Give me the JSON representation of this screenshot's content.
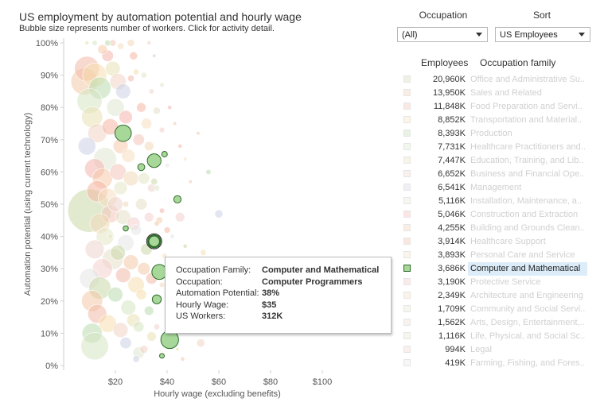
{
  "header": {
    "title": "US employment by automation potential and hourly wage",
    "subtitle": "Bubble size represents number of workers.  Click for activity detail."
  },
  "controls": {
    "occupation_label": "Occupation",
    "occupation_value": "(All)",
    "sort_label": "Sort",
    "sort_value": "US Employees"
  },
  "legend": {
    "employees_header": "Employees",
    "family_header": "Occupation family",
    "rows": [
      {
        "employees": "20,960K",
        "family": "Office and Administrative Su..",
        "color": "#c9d7a8"
      },
      {
        "employees": "13,950K",
        "family": "Sales and Related",
        "color": "#f2c9a7"
      },
      {
        "employees": "11,848K",
        "family": "Food Preparation and Servi..",
        "color": "#f3b9a8"
      },
      {
        "employees": "8,852K",
        "family": "Transportation and Material..",
        "color": "#f6dfae"
      },
      {
        "employees": "8,393K",
        "family": "Production",
        "color": "#b9dcae"
      },
      {
        "employees": "7,731K",
        "family": "Healthcare Practitioners and..",
        "color": "#d6e6c2"
      },
      {
        "employees": "7,447K",
        "family": "Education, Training, and Lib..",
        "color": "#e9e2b5"
      },
      {
        "employees": "6,652K",
        "family": "Business and Financial Ope..",
        "color": "#f1d3c5"
      },
      {
        "employees": "6,541K",
        "family": "Management",
        "color": "#ccd1e4"
      },
      {
        "employees": "5,116K",
        "family": "Installation, Maintenance, a..",
        "color": "#e0e7d2"
      },
      {
        "employees": "5,046K",
        "family": "Construction and Extraction",
        "color": "#f4b5ad"
      },
      {
        "employees": "4,255K",
        "family": "Building and Grounds Clean..",
        "color": "#f6c9a9"
      },
      {
        "employees": "3,914K",
        "family": "Healthcare Support",
        "color": "#f6b7a3"
      },
      {
        "employees": "3,893K",
        "family": "Personal Care and Service",
        "color": "#f6dfc0"
      },
      {
        "employees": "3,686K",
        "family": "Computer and Mathematical",
        "color": "#a7d89a"
      },
      {
        "employees": "3,190K",
        "family": "Protective Service",
        "color": "#f4c4ba"
      },
      {
        "employees": "2,349K",
        "family": "Architecture and Engineering",
        "color": "#f3d8b9"
      },
      {
        "employees": "1,709K",
        "family": "Community and Social Servi..",
        "color": "#e5e6c6"
      },
      {
        "employees": "1,562K",
        "family": "Arts, Design, Entertainment,..",
        "color": "#ecd4cc"
      },
      {
        "employees": "1,116K",
        "family": "Life, Physical, and Social Sc..",
        "color": "#e6e0c8"
      },
      {
        "employees": "994K",
        "family": "Legal",
        "color": "#f4d0cd"
      },
      {
        "employees": "419K",
        "family": "Farming, Fishing, and Fores..",
        "color": "#e6e6e6"
      }
    ],
    "highlight_index": 14
  },
  "tooltip": {
    "rows": [
      {
        "key": "Occupation Family:",
        "value": "Computer and Mathematical"
      },
      {
        "key": "Occupation:",
        "value": "Computer Programmers"
      },
      {
        "key": "Automation Potential:",
        "value": "38%"
      },
      {
        "key": "Hourly Wage:",
        "value": "$35"
      },
      {
        "key": "US Workers:",
        "value": "312K"
      }
    ]
  },
  "chart_data": {
    "type": "scatter",
    "title": "US employment by automation potential and hourly wage",
    "xlabel": "Hourly wage (excluding benefits)",
    "ylabel": "Automation potential (using current technology)",
    "xlim": [
      0,
      120
    ],
    "ylim": [
      0,
      100
    ],
    "x_ticks": [
      20,
      40,
      60,
      80,
      100
    ],
    "x_tick_labels": [
      "$20",
      "$40",
      "$60",
      "$80",
      "$100"
    ],
    "y_ticks": [
      0,
      10,
      20,
      30,
      40,
      50,
      60,
      70,
      80,
      90,
      100
    ],
    "y_tick_labels": [
      "0%",
      "10%",
      "20%",
      "30%",
      "40%",
      "50%",
      "60%",
      "70%",
      "80%",
      "90%",
      "100%"
    ],
    "grid": false,
    "bubble_size": "US workers (K)",
    "highlighted_series": {
      "name": "Computer and Mathematical",
      "color": "#a7d89a",
      "points": [
        {
          "x": 23,
          "y": 72,
          "workers": 600
        },
        {
          "x": 35,
          "y": 63.5,
          "workers": 420
        },
        {
          "x": 30,
          "y": 61.5,
          "workers": 110
        },
        {
          "x": 39,
          "y": 65.5,
          "workers": 70
        },
        {
          "x": 44,
          "y": 51.5,
          "workers": 120
        },
        {
          "x": 24,
          "y": 42.5,
          "workers": 60
        },
        {
          "x": 35,
          "y": 38.5,
          "workers": 312,
          "selected": true
        },
        {
          "x": 37,
          "y": 29,
          "workers": 500
        },
        {
          "x": 36,
          "y": 20.5,
          "workers": 180
        },
        {
          "x": 41,
          "y": 8,
          "workers": 700
        },
        {
          "x": 38,
          "y": 3,
          "workers": 50
        }
      ]
    },
    "other_occupations": {
      "colors": [
        "#c9d7a8",
        "#f2c9a7",
        "#f3b9a8",
        "#f6dfae",
        "#b9dcae",
        "#d6e6c2",
        "#e9e2b5",
        "#f1d3c5",
        "#ccd1e4",
        "#e0e7d2",
        "#f4b5ad",
        "#f6c9a9",
        "#f6b7a3",
        "#f6dfc0",
        "#f4c4ba",
        "#f3d8b9",
        "#e5e6c6",
        "#ecd4cc",
        "#e6e0c8",
        "#f4d0cd",
        "#e6e6e6"
      ],
      "points": [
        [
          10,
          48,
          4200
        ],
        [
          8,
          88,
          1600
        ],
        [
          9,
          92,
          1400
        ],
        [
          12,
          90,
          1300
        ],
        [
          14,
          86,
          1100
        ],
        [
          10,
          82,
          1400
        ],
        [
          11,
          77,
          1000
        ],
        [
          13,
          72,
          800
        ],
        [
          9,
          68,
          700
        ],
        [
          16,
          64,
          1200
        ],
        [
          12,
          61,
          900
        ],
        [
          15,
          58,
          900
        ],
        [
          13,
          54,
          1000
        ],
        [
          17,
          52,
          800
        ],
        [
          18,
          47,
          700
        ],
        [
          14,
          44,
          900
        ],
        [
          16,
          40,
          700
        ],
        [
          12,
          36,
          800
        ],
        [
          19,
          33,
          1000
        ],
        [
          15,
          30,
          900
        ],
        [
          10,
          27,
          900
        ],
        [
          14,
          24,
          1100
        ],
        [
          11,
          20,
          1000
        ],
        [
          13,
          16,
          800
        ],
        [
          17,
          13,
          700
        ],
        [
          11,
          10,
          900
        ],
        [
          12,
          6,
          1700
        ],
        [
          19,
          92,
          500
        ],
        [
          21,
          88,
          600
        ],
        [
          23,
          85,
          500
        ],
        [
          20,
          80,
          700
        ],
        [
          24,
          77,
          400
        ],
        [
          22,
          68,
          500
        ],
        [
          18,
          74,
          600
        ],
        [
          25,
          65,
          400
        ],
        [
          21,
          60,
          600
        ],
        [
          26,
          58,
          500
        ],
        [
          22,
          55,
          400
        ],
        [
          20,
          50,
          500
        ],
        [
          23,
          46,
          500
        ],
        [
          27,
          44,
          400
        ],
        [
          24,
          38,
          600
        ],
        [
          21,
          35,
          500
        ],
        [
          26,
          32,
          500
        ],
        [
          23,
          28,
          500
        ],
        [
          28,
          25,
          600
        ],
        [
          20,
          22,
          500
        ],
        [
          25,
          18,
          500
        ],
        [
          27,
          14,
          400
        ],
        [
          22,
          11,
          500
        ],
        [
          24,
          7,
          300
        ],
        [
          29,
          4,
          300
        ],
        [
          17,
          96,
          300
        ],
        [
          15,
          98,
          200
        ],
        [
          30,
          80,
          200
        ],
        [
          32,
          75,
          250
        ],
        [
          29,
          70,
          300
        ],
        [
          33,
          68,
          200
        ],
        [
          31,
          58,
          300
        ],
        [
          34,
          55,
          150
        ],
        [
          30,
          50,
          300
        ],
        [
          33,
          46,
          200
        ],
        [
          28,
          42,
          250
        ],
        [
          32,
          36,
          300
        ],
        [
          31,
          30,
          350
        ],
        [
          34,
          27,
          300
        ],
        [
          30,
          22,
          250
        ],
        [
          33,
          17,
          200
        ],
        [
          29,
          12,
          250
        ],
        [
          34,
          9,
          200
        ],
        [
          31,
          5,
          150
        ],
        [
          28,
          2,
          100
        ],
        [
          36,
          55,
          80
        ],
        [
          38,
          48,
          60
        ],
        [
          37,
          45,
          100
        ],
        [
          40,
          42,
          90
        ],
        [
          39,
          34,
          60
        ],
        [
          42,
          30,
          80
        ],
        [
          38,
          25,
          60
        ],
        [
          41,
          18,
          60
        ],
        [
          36,
          12,
          80
        ],
        [
          43,
          10,
          50
        ],
        [
          45,
          46,
          200
        ],
        [
          42,
          40,
          50
        ],
        [
          47,
          37,
          40
        ],
        [
          52,
          72,
          30
        ],
        [
          50,
          25,
          100
        ],
        [
          54,
          35,
          80
        ],
        [
          56,
          60,
          60
        ],
        [
          48,
          15,
          40
        ],
        [
          44,
          5,
          30
        ],
        [
          53,
          7,
          150
        ],
        [
          60,
          47,
          150
        ],
        [
          58,
          31,
          200
        ],
        [
          62,
          22,
          100
        ],
        [
          46,
          2,
          40
        ],
        [
          27,
          96,
          150
        ],
        [
          22,
          99,
          100
        ],
        [
          19,
          100,
          100
        ],
        [
          26,
          100,
          120
        ],
        [
          31,
          90,
          80
        ],
        [
          34,
          85,
          60
        ],
        [
          36,
          79,
          120
        ],
        [
          38,
          73,
          70
        ],
        [
          40,
          62,
          50
        ],
        [
          35,
          57,
          100
        ],
        [
          36,
          44,
          60
        ],
        [
          26,
          89,
          100
        ],
        [
          28,
          91,
          80
        ],
        [
          17,
          100,
          80
        ],
        [
          12,
          100,
          60
        ],
        [
          9,
          100,
          40
        ],
        [
          33,
          100,
          40
        ],
        [
          35,
          96,
          30
        ],
        [
          38,
          87,
          50
        ],
        [
          41,
          80,
          40
        ],
        [
          43,
          75,
          30
        ],
        [
          45,
          68,
          40
        ],
        [
          47,
          64,
          30
        ],
        [
          49,
          57,
          30
        ],
        [
          24,
          50,
          80
        ],
        [
          18,
          40,
          60
        ]
      ]
    }
  }
}
